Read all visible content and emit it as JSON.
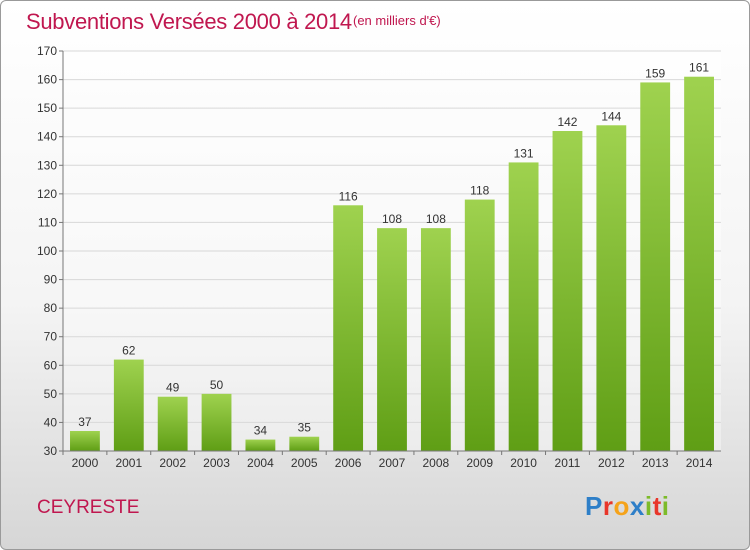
{
  "header": {
    "title": "Subventions Versées 2000 à 2014",
    "unit": "(en milliers d'€)"
  },
  "footer": {
    "commune": "CEYRESTE",
    "logo": "Proxiti",
    "logo_colors": [
      "#2e7fc8",
      "#e8362a",
      "#f5a31a",
      "#2e7fc8",
      "#7dbb2a",
      "#e8362a",
      "#7dbb2a"
    ]
  },
  "colors": {
    "bar_top": "#9fd24f",
    "bar_bottom": "#5f9e15",
    "title": "#c0174f"
  },
  "chart_data": {
    "type": "bar",
    "title": "Subventions Versées 2000 à 2014",
    "subtitle": "(en milliers d'€)",
    "categories": [
      "2000",
      "2001",
      "2002",
      "2003",
      "2004",
      "2005",
      "2006",
      "2007",
      "2008",
      "2009",
      "2010",
      "2011",
      "2012",
      "2013",
      "2014"
    ],
    "values": [
      37,
      62,
      49,
      50,
      34,
      35,
      116,
      108,
      108,
      118,
      131,
      142,
      144,
      159,
      161
    ],
    "ylim": [
      30,
      170
    ],
    "yticks": [
      30,
      40,
      50,
      60,
      70,
      80,
      90,
      100,
      110,
      120,
      130,
      140,
      150,
      160,
      170
    ],
    "xlabel": "",
    "ylabel": "",
    "grid": true,
    "legend": "none",
    "data_labels": true
  }
}
